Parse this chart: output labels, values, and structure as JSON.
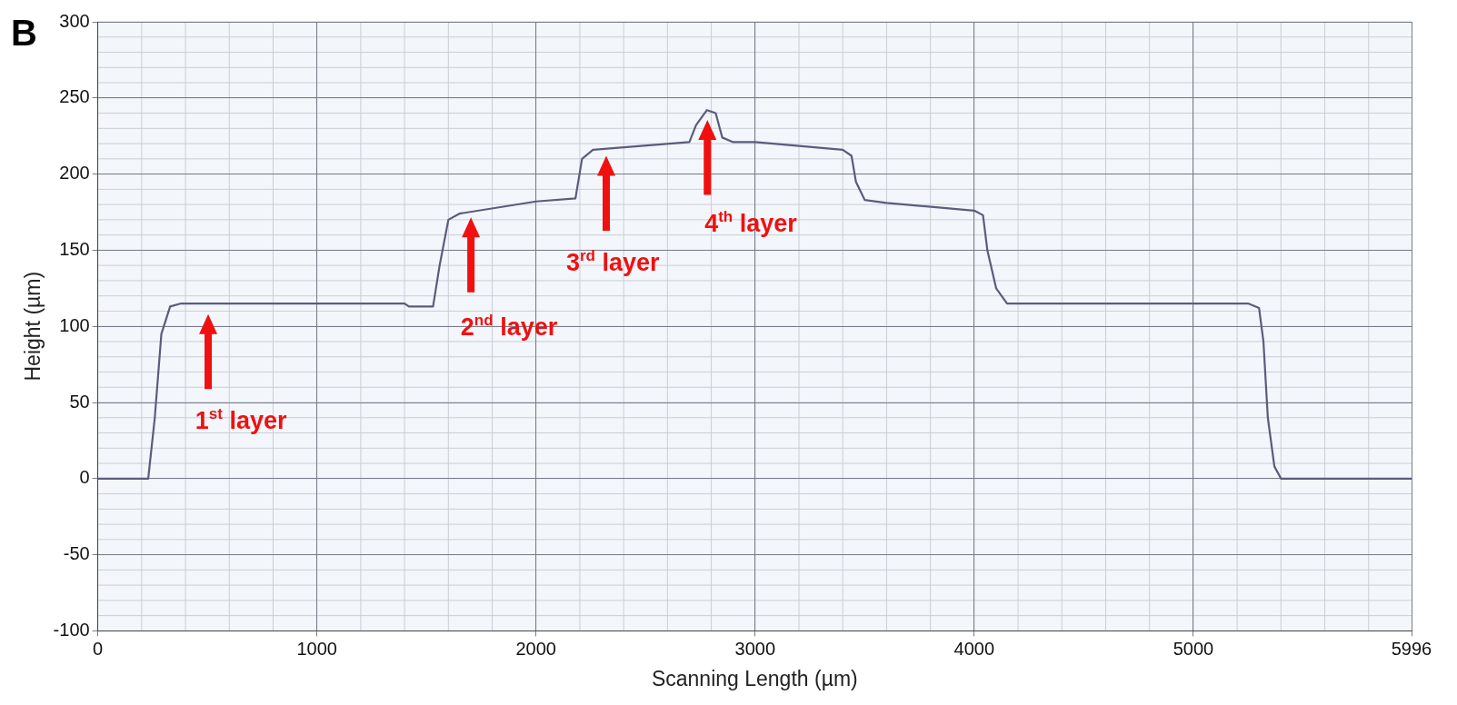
{
  "chart_data": {
    "type": "line",
    "title": "B",
    "xlabel": "Scanning Length (µm)",
    "ylabel": "Height (µm)",
    "xlim": [
      0,
      5996
    ],
    "xticks": [
      0,
      1000,
      2000,
      3000,
      4000,
      5000,
      5996
    ],
    "ylim": [
      -100,
      300
    ],
    "yticks": [
      -100,
      -50,
      0,
      50,
      100,
      150,
      200,
      250,
      300
    ],
    "grid": true,
    "legend": false,
    "marker": "none",
    "line_style": "solid",
    "series": [
      {
        "color": "#5a5c7e",
        "x": [
          0,
          230,
          260,
          290,
          330,
          380,
          1000,
          1400,
          1420,
          1530,
          1560,
          1600,
          1650,
          2000,
          2180,
          2210,
          2260,
          2700,
          2730,
          2780,
          2820,
          2850,
          2900,
          3000,
          3400,
          3440,
          3460,
          3500,
          3600,
          4000,
          4040,
          4060,
          4100,
          4150,
          5250,
          5300,
          5320,
          5340,
          5370,
          5400,
          5996
        ],
        "values": [
          0,
          0,
          40,
          95,
          113,
          115,
          115,
          115,
          113,
          113,
          140,
          170,
          174,
          182,
          184,
          210,
          216,
          221,
          232,
          242,
          240,
          224,
          221,
          221,
          216,
          212,
          195,
          183,
          181,
          176,
          173,
          150,
          125,
          115,
          115,
          112,
          90,
          40,
          8,
          0,
          0
        ]
      }
    ],
    "annotations": [
      "1$^{st}$ layer",
      "2$^{nd}$ layer",
      "3$^{rd}$ layer",
      "4$^{th}$ layer"
    ]
  }
}
